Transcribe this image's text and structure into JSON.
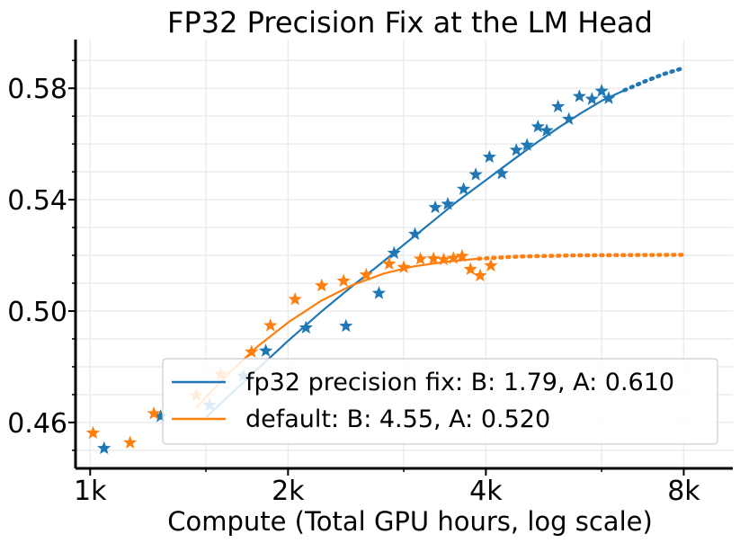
{
  "chart_data": {
    "type": "scatter",
    "title": "FP32 Precision Fix at the LM Head",
    "xlabel": "Compute (Total GPU hours, log scale)",
    "ylabel": "",
    "x_scale": "log2",
    "xlim": [
      950,
      9500
    ],
    "ylim": [
      0.4435,
      0.5975
    ],
    "x_ticks": [
      1000,
      2000,
      4000,
      8000
    ],
    "x_tick_labels": [
      "1k",
      "2k",
      "4k",
      "8k"
    ],
    "y_ticks": [
      0.46,
      0.5,
      0.54,
      0.58
    ],
    "y_tick_labels": [
      "0.46",
      "0.50",
      "0.54",
      "0.58"
    ],
    "grid": true,
    "legend_position": "lower-right",
    "series": [
      {
        "name": "fp32 precision fix: B: 1.79, A: 0.610",
        "color": "#1f77b4",
        "points": [
          [
            1050,
            0.4507
          ],
          [
            1280,
            0.4622
          ],
          [
            1520,
            0.4662
          ],
          [
            1710,
            0.4767
          ],
          [
            1850,
            0.4857
          ],
          [
            2130,
            0.494
          ],
          [
            2450,
            0.4946
          ],
          [
            2750,
            0.5064
          ],
          [
            2900,
            0.5208
          ],
          [
            3120,
            0.5276
          ],
          [
            3350,
            0.5372
          ],
          [
            3500,
            0.5384
          ],
          [
            3700,
            0.5438
          ],
          [
            3860,
            0.549
          ],
          [
            4050,
            0.5553
          ],
          [
            4230,
            0.5494
          ],
          [
            4450,
            0.5578
          ],
          [
            4620,
            0.5596
          ],
          [
            4800,
            0.5662
          ],
          [
            4950,
            0.5648
          ],
          [
            5150,
            0.5734
          ],
          [
            5350,
            0.5689
          ],
          [
            5550,
            0.5771
          ],
          [
            5800,
            0.5761
          ],
          [
            6000,
            0.579
          ],
          [
            6150,
            0.5764
          ]
        ],
        "fit_solid": [
          [
            1500,
            0.4618
          ],
          [
            1750,
            0.4766
          ],
          [
            2000,
            0.4893
          ],
          [
            2250,
            0.4999
          ],
          [
            2500,
            0.5088
          ],
          [
            2750,
            0.5165
          ],
          [
            3000,
            0.5238
          ],
          [
            3300,
            0.5317
          ],
          [
            3600,
            0.539
          ],
          [
            4000,
            0.547
          ],
          [
            4400,
            0.5543
          ],
          [
            4800,
            0.5608
          ],
          [
            5200,
            0.5664
          ],
          [
            5600,
            0.5713
          ],
          [
            6000,
            0.5755
          ],
          [
            6500,
            0.5793
          ]
        ],
        "fit_dotted": [
          [
            6500,
            0.5793
          ],
          [
            7000,
            0.5826
          ],
          [
            7500,
            0.5853
          ],
          [
            8000,
            0.5873
          ]
        ]
      },
      {
        "name": "default: B: 4.55, A: 0.520",
        "color": "#ff7f0e",
        "points": [
          [
            1010,
            0.4562
          ],
          [
            1150,
            0.4527
          ],
          [
            1250,
            0.4632
          ],
          [
            1450,
            0.4697
          ],
          [
            1580,
            0.4773
          ],
          [
            1760,
            0.4853
          ],
          [
            1880,
            0.4948
          ],
          [
            2050,
            0.5042
          ],
          [
            2250,
            0.5091
          ],
          [
            2430,
            0.5108
          ],
          [
            2630,
            0.513
          ],
          [
            2850,
            0.5169
          ],
          [
            3000,
            0.5157
          ],
          [
            3180,
            0.5187
          ],
          [
            3330,
            0.5188
          ],
          [
            3450,
            0.5185
          ],
          [
            3570,
            0.519
          ],
          [
            3680,
            0.5197
          ],
          [
            3790,
            0.515
          ],
          [
            3920,
            0.5127
          ],
          [
            4070,
            0.5163
          ]
        ],
        "fit_solid": [
          [
            1450,
            0.4653
          ],
          [
            1600,
            0.4762
          ],
          [
            1800,
            0.4874
          ],
          [
            2000,
            0.4959
          ],
          [
            2250,
            0.5038
          ],
          [
            2500,
            0.5092
          ],
          [
            2800,
            0.5135
          ],
          [
            3100,
            0.516
          ],
          [
            3500,
            0.5178
          ],
          [
            3900,
            0.5188
          ]
        ],
        "fit_dotted": [
          [
            3900,
            0.5188
          ],
          [
            4500,
            0.5196
          ],
          [
            5500,
            0.52
          ],
          [
            6500,
            0.5201
          ],
          [
            8000,
            0.5202
          ]
        ]
      }
    ]
  }
}
